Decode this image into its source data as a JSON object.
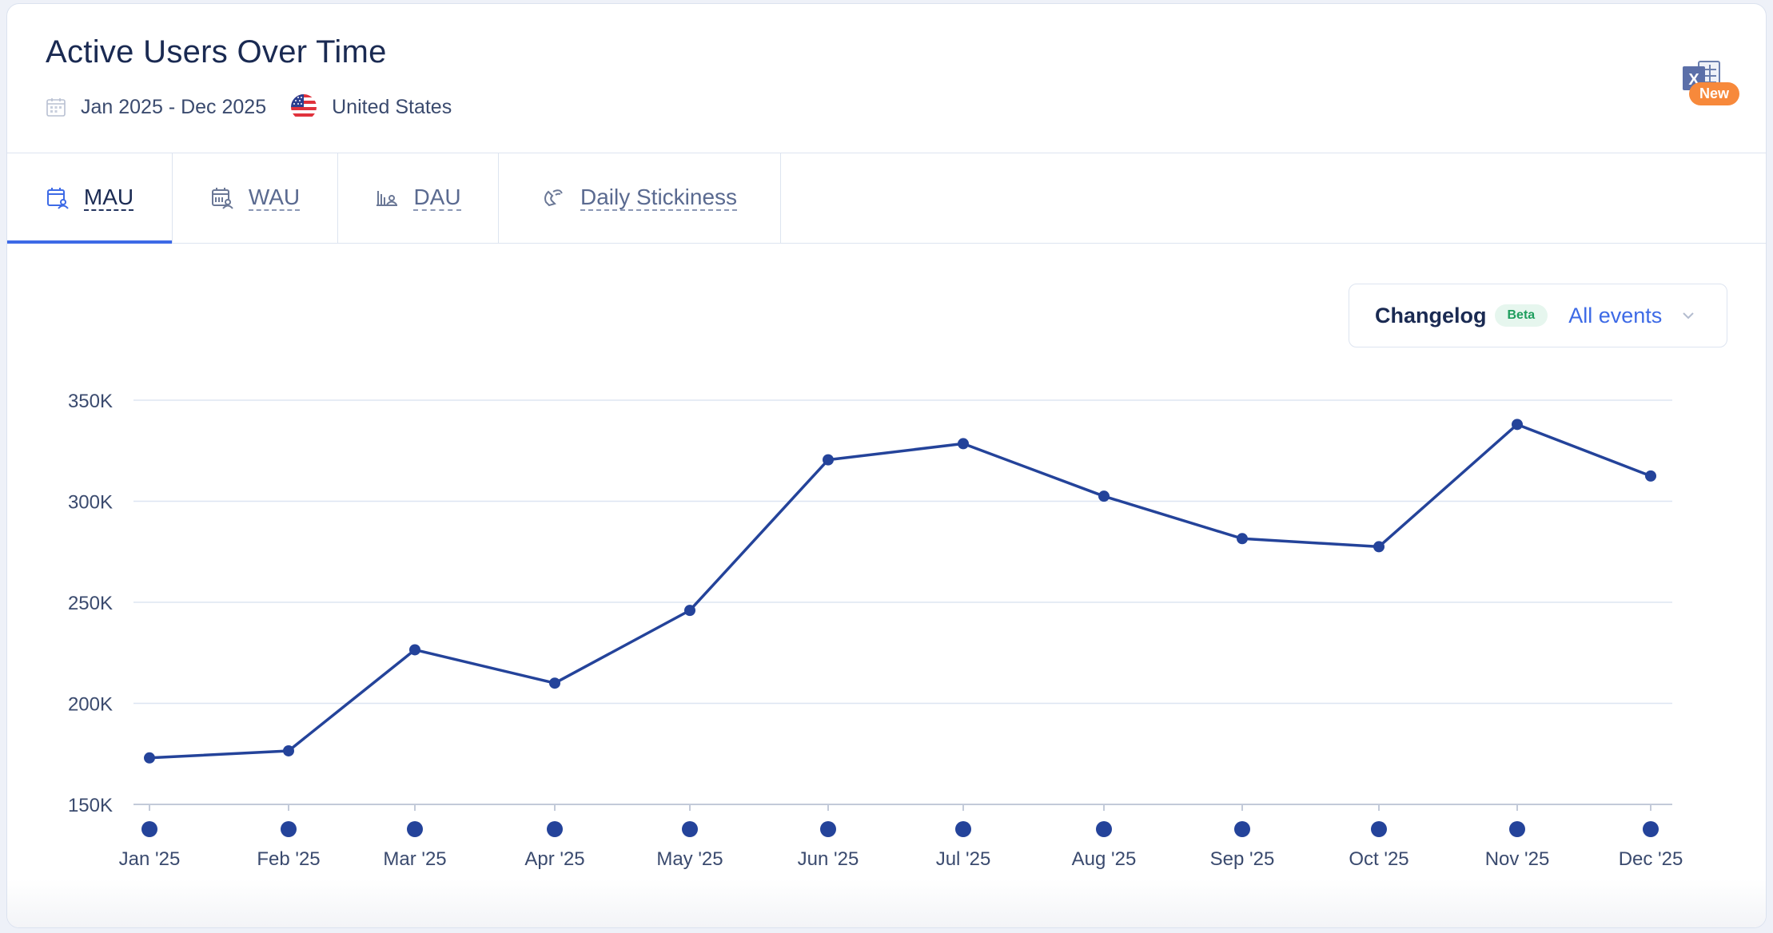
{
  "header": {
    "title": "Active Users Over Time",
    "date_range": "Jan 2025 - Dec 2025",
    "country": "United States",
    "export_badge": "New"
  },
  "tabs": [
    {
      "label": "MAU",
      "active": true
    },
    {
      "label": "WAU",
      "active": false
    },
    {
      "label": "DAU",
      "active": false
    },
    {
      "label": "Daily Stickiness",
      "active": false
    }
  ],
  "changelog": {
    "label": "Changelog",
    "badge": "Beta",
    "selected": "All events"
  },
  "colors": {
    "accent": "#3d6ae6",
    "series": "#24439a",
    "export_badge": "#f7893b"
  },
  "chart_data": {
    "type": "line",
    "title": "Active Users Over Time",
    "xlabel": "",
    "ylabel": "",
    "ylim": [
      150000,
      350000
    ],
    "y_ticks": [
      150000,
      200000,
      250000,
      300000,
      350000
    ],
    "y_tick_labels": [
      "150K",
      "200K",
      "250K",
      "300K",
      "350K"
    ],
    "categories": [
      "Jan '25",
      "Feb '25",
      "Mar '25",
      "Apr '25",
      "May '25",
      "Jun '25",
      "Jul '25",
      "Aug '25",
      "Sep '25",
      "Oct '25",
      "Nov '25",
      "Dec '25"
    ],
    "series": [
      {
        "name": "MAU",
        "values": [
          173000,
          176500,
          226500,
          210000,
          246000,
          320500,
          328500,
          302500,
          281500,
          277500,
          338000,
          312500
        ]
      }
    ],
    "grid": true
  }
}
